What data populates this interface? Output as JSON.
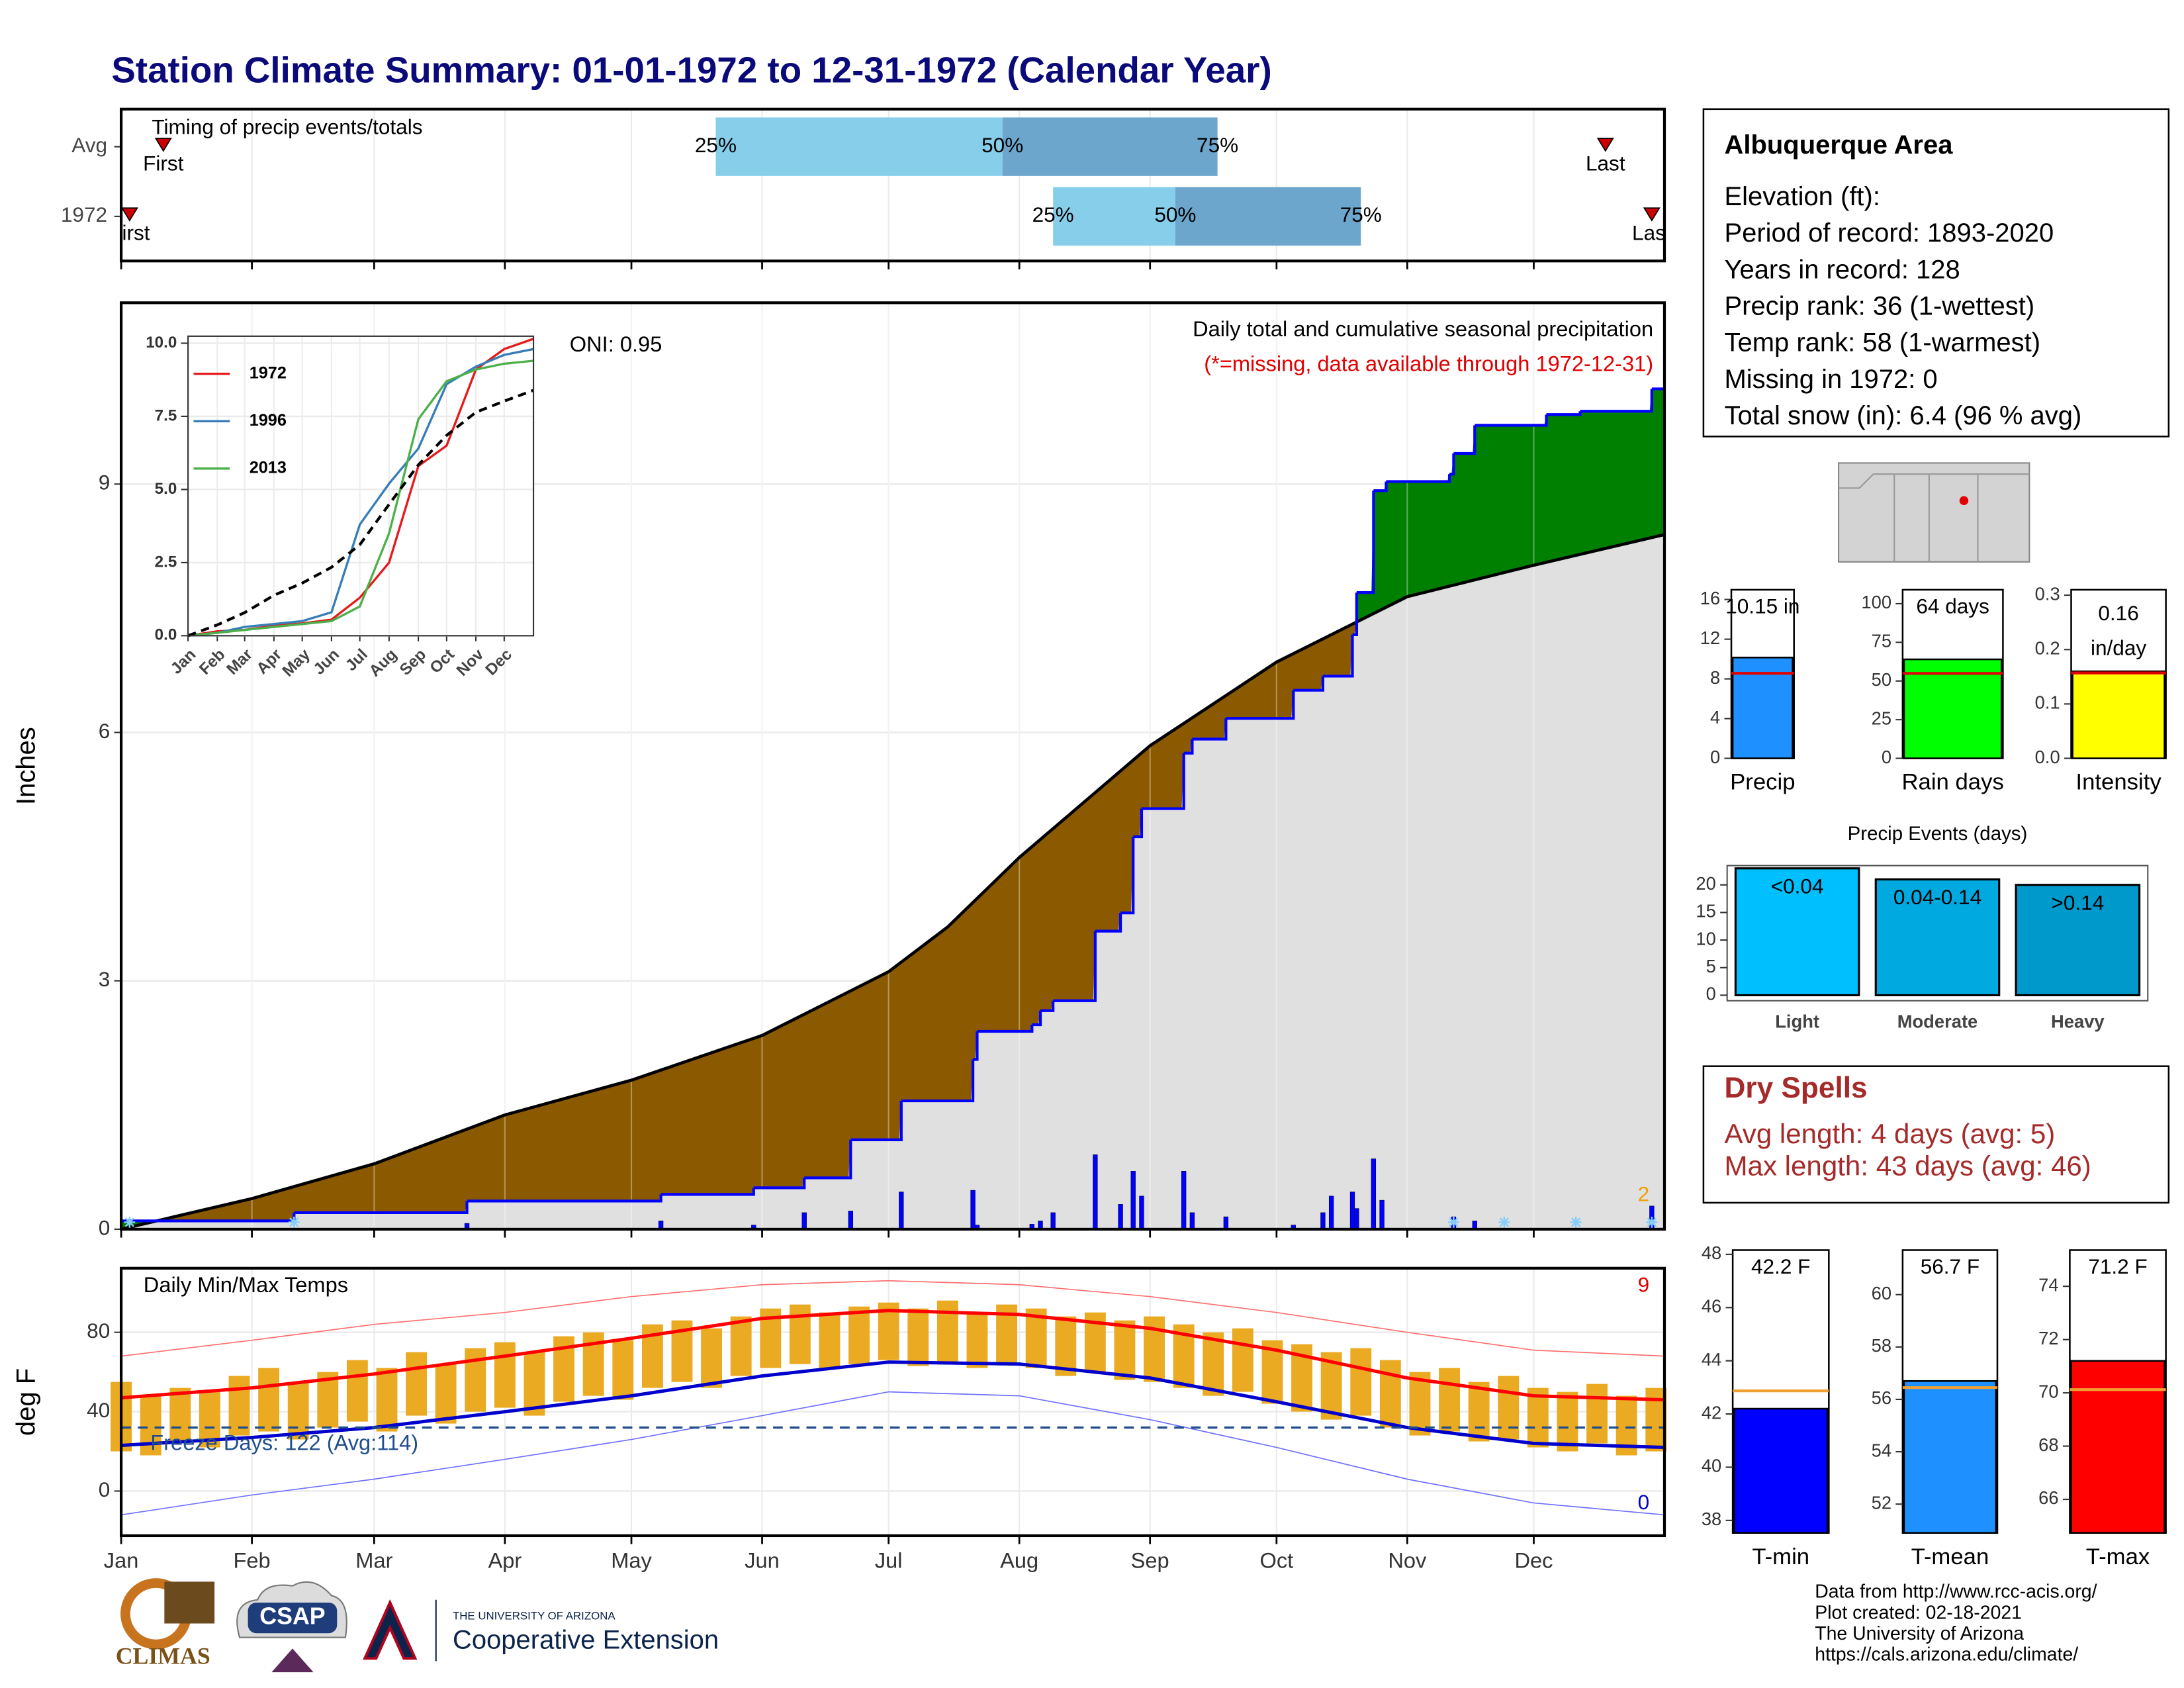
{
  "title": "Station Climate Summary: 01-01-1972 to 12-31-1972 (Calendar Year)",
  "station": {
    "name": "Albuquerque Area",
    "lines": [
      "Elevation (ft):",
      "Period of record: 1893-2020",
      "Years in record: 128",
      "Precip rank: 36 (1-wettest)",
      "Temp rank: 58 (1-warmest)",
      "Missing in 1972: 0",
      "Total snow (in): 6.4 (96 % avg)"
    ]
  },
  "dry_spells": {
    "title": "Dry Spells",
    "lines": [
      "Avg length: 4 days (avg: 5)",
      "Max length: 43 days (avg: 46)"
    ]
  },
  "footer": {
    "lines": [
      "Data from http://www.rcc-acis.org/",
      "Plot created: 02-18-2021",
      "The University of Arizona",
      "https://cals.arizona.edu/climate/"
    ],
    "logos": [
      "CLIMAS",
      "CSAP",
      "THE UNIVERSITY OF ARIZONA",
      "Cooperative Extension"
    ]
  },
  "chart_data": [
    {
      "type": "timing",
      "title": "Timing of precip events/totals",
      "xlim": [
        0,
        366
      ],
      "markers": [
        "First",
        "25%",
        "50%",
        "75%",
        "Last"
      ],
      "colors": [
        "#87ceeb",
        "#6ca6cd",
        "#cc0000"
      ],
      "rows": [
        {
          "name": "Avg",
          "values": [
            10,
            141,
            209,
            260,
            352
          ]
        },
        {
          "name": "1972",
          "values": [
            2,
            221,
            250,
            294,
            363
          ]
        }
      ]
    },
    {
      "type": "precip",
      "subtitle": "Daily total and cumulative seasonal precipitation",
      "note": "(*=missing, data available through 1972-12-31)",
      "oni": "ONI: 0.95",
      "record_count": 2,
      "ylabel": "Inches",
      "xlim": [
        0,
        366
      ],
      "ylim": [
        0,
        11.19
      ],
      "yticks": [
        0,
        3,
        6,
        9
      ],
      "grid": true,
      "above_color": "#008000",
      "below_color": "#8b5a00",
      "area_color": "#e0e0e0",
      "snow_color": "#87cefa",
      "series": [
        {
          "color": "#000000",
          "x": [
            0,
            31,
            60,
            91,
            121,
            152,
            182,
            196,
            213,
            244,
            274,
            305,
            335,
            366
          ],
          "values": [
            0,
            0.37,
            0.79,
            1.38,
            1.8,
            2.34,
            3.11,
            3.65,
            4.49,
            5.84,
            6.85,
            7.64,
            8.02,
            8.39
          ]
        },
        {
          "color": "#0000ff",
          "x": [
            0,
            41,
            82,
            128,
            150,
            162,
            173,
            185,
            202,
            203,
            216,
            218,
            221,
            231,
            237,
            240,
            242,
            252,
            254,
            262,
            278,
            285,
            292,
            293,
            297,
            300,
            315,
            316,
            321,
            338,
            346,
            363
          ],
          "values": [
            0.1,
            0.2,
            0.34,
            0.42,
            0.5,
            0.62,
            1.08,
            1.55,
            2.05,
            2.39,
            2.47,
            2.64,
            2.76,
            3.6,
            3.82,
            4.74,
            5.08,
            5.75,
            5.92,
            6.17,
            6.51,
            6.68,
            7.18,
            7.69,
            8.92,
            9.03,
            9.12,
            9.37,
            9.71,
            9.84,
            9.88,
            10.15
          ]
        }
      ],
      "daily": {
        "color": "#0000ff",
        "x": [
          82,
          128,
          150,
          162,
          173,
          185,
          202,
          203,
          216,
          218,
          221,
          231,
          237,
          240,
          242,
          252,
          254,
          262,
          278,
          285,
          287,
          292,
          293,
          297,
          299,
          316,
          321,
          363
        ],
        "values": [
          0.07,
          0.1,
          0.05,
          0.2,
          0.22,
          0.45,
          0.47,
          0.05,
          0.06,
          0.1,
          0.2,
          0.9,
          0.3,
          0.7,
          0.4,
          0.7,
          0.2,
          0.15,
          0.05,
          0.2,
          0.4,
          0.45,
          0.25,
          0.85,
          0.35,
          0.15,
          0.1,
          0.28
        ]
      },
      "snow_days": [
        2,
        41,
        316,
        328,
        345,
        363
      ]
    },
    {
      "type": "inset",
      "xlim": [
        0,
        366
      ],
      "ylim": [
        0,
        10.24
      ],
      "yticks": [
        {
          "value": 0,
          "label": "0.0"
        },
        2.5,
        {
          "value": 5,
          "label": "5.0"
        },
        7.5,
        {
          "value": 10,
          "label": "10.0"
        }
      ],
      "xticks": [
        {
          "value": 0,
          "label": "Jan"
        },
        {
          "value": 31,
          "label": "Feb"
        },
        {
          "value": 60,
          "label": "Mar"
        },
        {
          "value": 91,
          "label": "Apr"
        },
        {
          "value": 121,
          "label": "May"
        },
        {
          "value": 152,
          "label": "Jun"
        },
        {
          "value": 182,
          "label": "Jul"
        },
        {
          "value": 213,
          "label": "Aug"
        },
        {
          "value": 244,
          "label": "Sep"
        },
        {
          "value": 274,
          "label": "Oct"
        },
        {
          "value": 305,
          "label": "Nov"
        },
        {
          "value": 335,
          "label": "Dec"
        }
      ],
      "x": [
        0,
        31,
        60,
        91,
        121,
        152,
        182,
        213,
        244,
        274,
        305,
        335,
        366
      ],
      "series": [
        {
          "name": "1972",
          "color": "#e41a1c",
          "values": [
            0,
            0.15,
            0.2,
            0.34,
            0.42,
            0.55,
            1.3,
            2.5,
            5.8,
            6.5,
            9.1,
            9.8,
            10.15
          ]
        },
        {
          "name": "1996",
          "color": "#377eb8",
          "values": [
            0,
            0.1,
            0.3,
            0.4,
            0.5,
            0.8,
            3.8,
            5.2,
            6.4,
            8.6,
            9.2,
            9.6,
            9.8
          ]
        },
        {
          "name": "2013",
          "color": "#4daf4a",
          "values": [
            0,
            0.1,
            0.2,
            0.3,
            0.4,
            0.5,
            1.0,
            3.5,
            7.4,
            8.7,
            9.1,
            9.3,
            9.4
          ]
        },
        {
          "color": "#000000",
          "dash": true,
          "values": [
            0,
            0.37,
            0.79,
            1.38,
            1.8,
            2.34,
            3.11,
            4.49,
            5.84,
            6.85,
            7.64,
            8.02,
            8.39
          ]
        }
      ]
    },
    {
      "type": "temps",
      "title": "Daily Min/Max Temps",
      "ylabel": "deg F",
      "freeze_label": "Freeze Days: 122 (Avg:114)",
      "record_high_count": 9,
      "record_low_count": 0,
      "xlim": [
        0,
        366
      ],
      "ylim": [
        -22.5,
        112.3
      ],
      "yticks": [
        0,
        40,
        80
      ],
      "grid": true,
      "freeze_threshold": 32,
      "xticks": [
        {
          "value": 0,
          "label": "Jan"
        },
        {
          "value": 31,
          "label": "Feb"
        },
        {
          "value": 60,
          "label": "Mar"
        },
        {
          "value": 91,
          "label": "Apr"
        },
        {
          "value": 121,
          "label": "May"
        },
        {
          "value": 152,
          "label": "Jun"
        },
        {
          "value": 182,
          "label": "Jul"
        },
        {
          "value": 213,
          "label": "Aug"
        },
        {
          "value": 244,
          "label": "Sep"
        },
        {
          "value": 274,
          "label": "Oct"
        },
        {
          "value": 305,
          "label": "Nov"
        },
        {
          "value": 335,
          "label": "Dec"
        }
      ],
      "x": [
        0,
        7,
        14,
        21,
        28,
        35,
        42,
        49,
        56,
        63,
        70,
        77,
        84,
        91,
        98,
        105,
        112,
        119,
        126,
        133,
        140,
        147,
        154,
        161,
        168,
        175,
        182,
        189,
        196,
        203,
        210,
        217,
        224,
        231,
        238,
        245,
        252,
        259,
        266,
        273,
        280,
        287,
        294,
        301,
        308,
        315,
        322,
        329,
        336,
        343,
        350,
        357,
        364
      ],
      "daily_high": {
        "color": "#eaaa22",
        "values": [
          55,
          48,
          52,
          50,
          58,
          62,
          55,
          60,
          66,
          62,
          70,
          64,
          72,
          75,
          70,
          78,
          80,
          76,
          84,
          86,
          82,
          88,
          92,
          94,
          90,
          93,
          95,
          92,
          96,
          90,
          94,
          92,
          88,
          90,
          86,
          88,
          84,
          80,
          82,
          76,
          74,
          70,
          72,
          66,
          60,
          62,
          55,
          58,
          52,
          50,
          54,
          48,
          52
        ]
      },
      "daily_low": {
        "color": "#eaaa22",
        "values": [
          20,
          18,
          25,
          22,
          28,
          30,
          26,
          32,
          35,
          30,
          38,
          34,
          40,
          42,
          38,
          45,
          48,
          46,
          52,
          55,
          52,
          58,
          62,
          64,
          62,
          64,
          66,
          63,
          65,
          62,
          64,
          62,
          58,
          60,
          56,
          55,
          52,
          48,
          50,
          44,
          40,
          36,
          38,
          32,
          28,
          30,
          25,
          26,
          22,
          20,
          24,
          18,
          20
        ]
      },
      "x_normals": [
        0,
        31,
        60,
        91,
        121,
        152,
        182,
        213,
        244,
        274,
        305,
        335,
        366
      ],
      "avg_high": {
        "color": "#ff0000",
        "values": [
          47,
          52,
          59,
          68,
          77,
          87,
          91,
          89,
          82,
          71,
          57,
          48,
          46
        ]
      },
      "avg_low": {
        "color": "#0000cd",
        "values": [
          23,
          27,
          32,
          40,
          48,
          58,
          65,
          64,
          57,
          45,
          32,
          24,
          22
        ]
      },
      "record_high": {
        "color": "#ff7070",
        "values": [
          68,
          76,
          84,
          90,
          98,
          104,
          106,
          104,
          98,
          90,
          80,
          71,
          68
        ]
      },
      "record_low": {
        "color": "#7070ff",
        "values": [
          -12,
          -2,
          6,
          16,
          26,
          38,
          50,
          48,
          36,
          22,
          6,
          -6,
          -12
        ]
      }
    },
    {
      "type": "summary_bar",
      "label": "Precip",
      "values": [
        10.15
      ],
      "value_labels": [
        "10.15 in"
      ],
      "average": 8.56,
      "color": "#1e90ff",
      "avg_color": "#e00000",
      "ylim": [
        0,
        16.98
      ],
      "yticks": [
        0,
        4,
        8,
        12,
        16
      ]
    },
    {
      "type": "summary_bar",
      "label": "Rain days",
      "values": [
        64
      ],
      "value_labels": [
        "64 days"
      ],
      "average": 54.9,
      "color": "#00ff00",
      "avg_color": "#e00000",
      "ylim": [
        0,
        109
      ],
      "yticks": [
        0,
        25,
        50,
        75,
        100
      ]
    },
    {
      "type": "summary_bar",
      "label": "Intensity",
      "values": [
        0.16
      ],
      "unit": "in/day",
      "average": 0.157,
      "color": "#ffff00",
      "avg_color": "#e00000",
      "ylim": [
        0,
        0.31
      ],
      "yticks": [
        {
          "value": 0,
          "label": "0.0"
        },
        0.1,
        0.2,
        0.3
      ]
    },
    {
      "type": "events",
      "title": "Precip Events (days)",
      "categories": [
        "Light",
        "Moderate",
        "Heavy"
      ],
      "bin_labels": [
        "<0.04",
        "0.04-0.14",
        ">0.14"
      ],
      "values": [
        23,
        21,
        20
      ],
      "colors": [
        "#00bfff",
        "#00a9e0",
        "#0099cc"
      ],
      "ylim": [
        -1,
        23.5
      ],
      "yticks": [
        0,
        5,
        10,
        15,
        20
      ]
    },
    {
      "type": "summary_bar",
      "label": "T-min",
      "values": [
        42.2
      ],
      "value_labels": [
        "42.2 F"
      ],
      "average": 42.87,
      "color": "#0000ff",
      "avg_color": "#f0a030",
      "ylim": [
        37.53,
        48.16
      ],
      "yticks": [
        38,
        40,
        42,
        44,
        46,
        48
      ]
    },
    {
      "type": "summary_bar",
      "label": "T-mean",
      "values": [
        56.7
      ],
      "value_labels": [
        "56.7 F"
      ],
      "average": 56.45,
      "color": "#1e90ff",
      "avg_color": "#f0a030",
      "ylim": [
        50.9,
        61.7
      ],
      "yticks": [
        52,
        54,
        56,
        58,
        60
      ]
    },
    {
      "type": "summary_bar",
      "label": "T-max",
      "values": [
        71.2
      ],
      "value_labels": [
        "71.2 F"
      ],
      "average": 70.12,
      "color": "#ff0000",
      "avg_color": "#f0a030",
      "ylim": [
        64.74,
        75.36
      ],
      "yticks": [
        66,
        68,
        70,
        72,
        74
      ]
    }
  ]
}
